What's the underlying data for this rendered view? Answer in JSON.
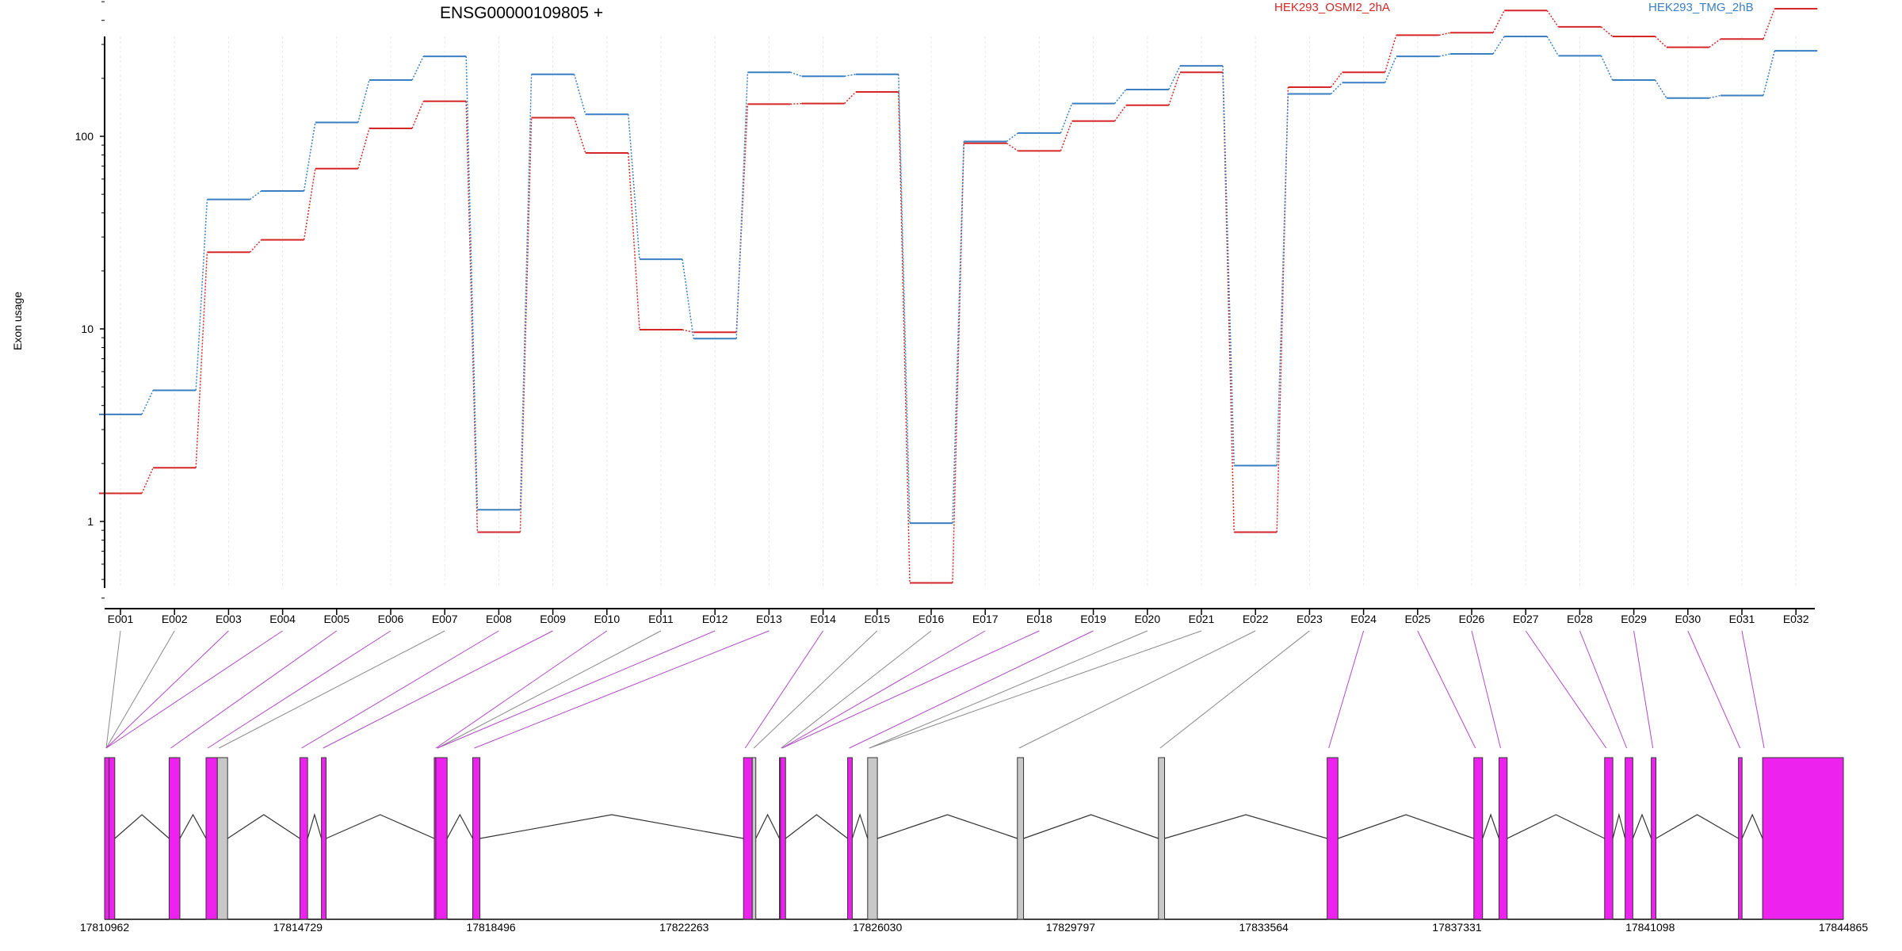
{
  "chart_data": {
    "type": "line",
    "title": "ENSG00000109805 +",
    "ylabel": "Exon usage",
    "yscale": "log",
    "ylim": [
      0.4,
      800
    ],
    "yticks": [
      {
        "value": 1,
        "label": "1"
      },
      {
        "value": 10,
        "label": "10"
      },
      {
        "value": 100,
        "label": "100"
      }
    ],
    "categories": [
      "E001",
      "E002",
      "E003",
      "E004",
      "E005",
      "E006",
      "E007",
      "E008",
      "E009",
      "E010",
      "E011",
      "E012",
      "E013",
      "E014",
      "E015",
      "E016",
      "E017",
      "E018",
      "E019",
      "E020",
      "E021",
      "E022",
      "E023",
      "E024",
      "E025",
      "E026",
      "E027",
      "E028",
      "E029",
      "E030",
      "E031",
      "E032"
    ],
    "series": [
      {
        "name": "HEK293_OSMI2_2hA",
        "color": "#d62728",
        "values": [
          1.4,
          1.9,
          25,
          29,
          68,
          110,
          152,
          0.88,
          125,
          82,
          9.9,
          9.6,
          147,
          148,
          170,
          0.48,
          92,
          84,
          120,
          145,
          215,
          0.88,
          180,
          215,
          335,
          345,
          450,
          370,
          330,
          290,
          320,
          460
        ]
      },
      {
        "name": "HEK293_TMG_2hB",
        "color": "#3a7fc1",
        "values": [
          3.6,
          4.8,
          47,
          52,
          118,
          196,
          260,
          1.15,
          210,
          130,
          23,
          8.9,
          215,
          205,
          210,
          0.98,
          94,
          104,
          148,
          175,
          232,
          1.95,
          166,
          190,
          260,
          268,
          330,
          262,
          196,
          158,
          163,
          278
        ]
      }
    ],
    "gene_model": {
      "coordinate_labels": [
        "17810962",
        "17814729",
        "17818496",
        "17822263",
        "17826030",
        "17829797",
        "17833564",
        "17837331",
        "17841098",
        "17844865"
      ],
      "exon_color": "#ee22ee",
      "non_tested_color": "#c8c8c8",
      "exons": [
        {
          "start": 17810962,
          "end": 17811050,
          "tested": true
        },
        {
          "start": 17811050,
          "end": 17811160,
          "tested": true
        },
        {
          "start": 17812220,
          "end": 17812430,
          "tested": true
        },
        {
          "start": 17812940,
          "end": 17813160,
          "tested": true
        },
        {
          "start": 17813160,
          "end": 17813360,
          "tested": false
        },
        {
          "start": 17814770,
          "end": 17814920,
          "tested": true
        },
        {
          "start": 17815190,
          "end": 17815280,
          "tested": true
        },
        {
          "start": 17817390,
          "end": 17817420,
          "tested": true
        },
        {
          "start": 17817420,
          "end": 17817640,
          "tested": true
        },
        {
          "start": 17818140,
          "end": 17818280,
          "tested": true
        },
        {
          "start": 17823420,
          "end": 17823590,
          "tested": true
        },
        {
          "start": 17823590,
          "end": 17823660,
          "tested": false
        },
        {
          "start": 17824120,
          "end": 17824140,
          "tested": true
        },
        {
          "start": 17824140,
          "end": 17824240,
          "tested": true
        },
        {
          "start": 17825450,
          "end": 17825540,
          "tested": true
        },
        {
          "start": 17825840,
          "end": 17826030,
          "tested": false
        },
        {
          "start": 17828760,
          "end": 17828880,
          "tested": false
        },
        {
          "start": 17831510,
          "end": 17831630,
          "tested": false
        },
        {
          "start": 17834800,
          "end": 17835010,
          "tested": true
        },
        {
          "start": 17837660,
          "end": 17837830,
          "tested": true
        },
        {
          "start": 17838150,
          "end": 17838310,
          "tested": true
        },
        {
          "start": 17840210,
          "end": 17840370,
          "tested": true
        },
        {
          "start": 17840610,
          "end": 17840760,
          "tested": true
        },
        {
          "start": 17841120,
          "end": 17841210,
          "tested": true
        },
        {
          "start": 17842820,
          "end": 17842890,
          "tested": true
        },
        {
          "start": 17843290,
          "end": 17844865,
          "tested": true
        }
      ],
      "exon_links": [
        {
          "exon": 1,
          "pos": 17810962,
          "tested": false
        },
        {
          "exon": 2,
          "pos": 17810962,
          "tested": false
        },
        {
          "exon": 3,
          "pos": 17810962,
          "tested": true
        },
        {
          "exon": 4,
          "pos": 17810962,
          "tested": true
        },
        {
          "exon": 5,
          "pos": 17812220,
          "tested": true
        },
        {
          "exon": 6,
          "pos": 17812940,
          "tested": true
        },
        {
          "exon": 7,
          "pos": 17813160,
          "tested": false
        },
        {
          "exon": 8,
          "pos": 17814770,
          "tested": true
        },
        {
          "exon": 9,
          "pos": 17815190,
          "tested": true
        },
        {
          "exon": 10,
          "pos": 17817390,
          "tested": true
        },
        {
          "exon": 11,
          "pos": 17817420,
          "tested": false
        },
        {
          "exon": 12,
          "pos": 17817420,
          "tested": true
        },
        {
          "exon": 13,
          "pos": 17818140,
          "tested": true
        },
        {
          "exon": 14,
          "pos": 17823420,
          "tested": true
        },
        {
          "exon": 15,
          "pos": 17823590,
          "tested": false
        },
        {
          "exon": 16,
          "pos": 17824120,
          "tested": false
        },
        {
          "exon": 17,
          "pos": 17824140,
          "tested": true
        },
        {
          "exon": 18,
          "pos": 17824140,
          "tested": true
        },
        {
          "exon": 19,
          "pos": 17825450,
          "tested": true
        },
        {
          "exon": 20,
          "pos": 17825840,
          "tested": false
        },
        {
          "exon": 21,
          "pos": 17825840,
          "tested": false
        },
        {
          "exon": 22,
          "pos": 17828760,
          "tested": false
        },
        {
          "exon": 23,
          "pos": 17831510,
          "tested": false
        },
        {
          "exon": 24,
          "pos": 17834800,
          "tested": true
        },
        {
          "exon": 25,
          "pos": 17837660,
          "tested": true
        },
        {
          "exon": 26,
          "pos": 17838150,
          "tested": true
        },
        {
          "exon": 27,
          "pos": 17840210,
          "tested": true
        },
        {
          "exon": 28,
          "pos": 17840610,
          "tested": true
        },
        {
          "exon": 29,
          "pos": 17841120,
          "tested": true
        },
        {
          "exon": 30,
          "pos": 17842820,
          "tested": true
        },
        {
          "exon": 31,
          "pos": 17843290,
          "tested": true
        }
      ]
    }
  }
}
